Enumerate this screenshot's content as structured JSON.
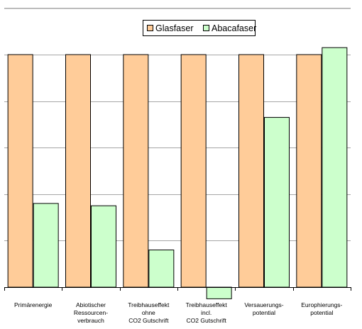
{
  "chart_data": {
    "type": "bar",
    "categories": [
      [
        "Primärenergie"
      ],
      [
        "Abiotischer",
        "Ressourcen-",
        "verbrauch"
      ],
      [
        "Treibhauseffekt",
        "ohne",
        "CO2 Gutschrift"
      ],
      [
        "Treibhauseffekt",
        "incl.",
        "CO2 Gutschrift"
      ],
      [
        "Versauerungs-",
        "potential"
      ],
      [
        "Europhierungs-",
        "potential"
      ]
    ],
    "series": [
      {
        "name": "Glasfaser",
        "color": "#FFCC99",
        "values": [
          100,
          100,
          100,
          100,
          100,
          100
        ]
      },
      {
        "name": "Abacafaser",
        "color": "#CCFFCC",
        "values": [
          36,
          35,
          16,
          -5,
          73,
          103
        ]
      }
    ],
    "ylim": [
      0,
      120
    ],
    "grid": true,
    "legend": "top-right"
  }
}
